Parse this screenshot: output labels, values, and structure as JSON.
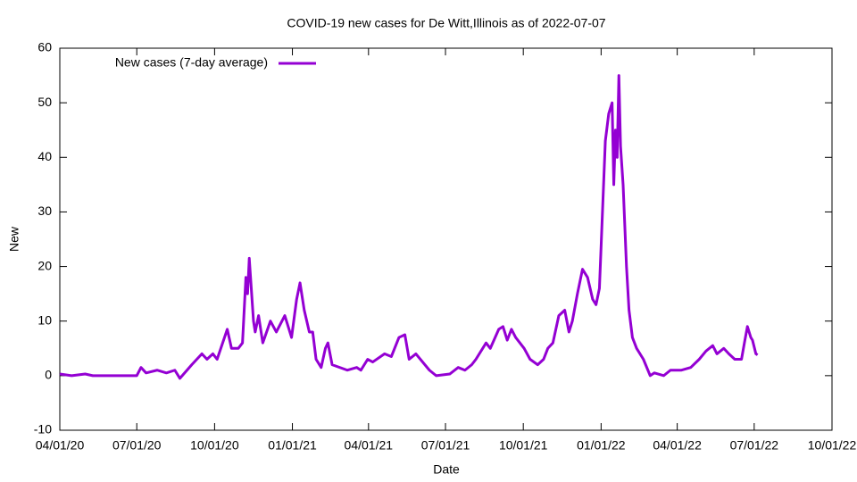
{
  "chart_data": {
    "type": "line",
    "title": "COVID-19 new cases for De Witt,Illinois as of 2022-07-07",
    "x_label": "Date",
    "y_label": "New",
    "legend": "top-left",
    "x": [
      "2020-04-01",
      "2020-04-15",
      "2020-05-01",
      "2020-05-10",
      "2020-07-01",
      "2020-07-06",
      "2020-07-12",
      "2020-07-25",
      "2020-08-05",
      "2020-08-15",
      "2020-08-21",
      "2020-09-04",
      "2020-09-16",
      "2020-09-22",
      "2020-09-29",
      "2020-10-04",
      "2020-10-16",
      "2020-10-21",
      "2020-10-29",
      "2020-11-03",
      "2020-11-07",
      "2020-11-09",
      "2020-11-11",
      "2020-11-16",
      "2020-11-18",
      "2020-11-22",
      "2020-11-27",
      "2020-12-06",
      "2020-12-13",
      "2020-12-23",
      "2020-12-31",
      "2021-01-06",
      "2021-01-10",
      "2021-01-15",
      "2021-01-21",
      "2021-01-25",
      "2021-01-29",
      "2021-02-04",
      "2021-02-09",
      "2021-02-12",
      "2021-02-17",
      "2021-03-07",
      "2021-03-18",
      "2021-03-23",
      "2021-03-31",
      "2021-04-06",
      "2021-04-20",
      "2021-04-28",
      "2021-05-07",
      "2021-05-14",
      "2021-05-19",
      "2021-05-27",
      "2021-06-12",
      "2021-06-20",
      "2021-07-06",
      "2021-07-16",
      "2021-07-24",
      "2021-08-01",
      "2021-08-06",
      "2021-08-18",
      "2021-08-23",
      "2021-09-02",
      "2021-09-07",
      "2021-09-12",
      "2021-09-17",
      "2021-09-22",
      "2021-10-02",
      "2021-10-09",
      "2021-10-18",
      "2021-10-25",
      "2021-10-30",
      "2021-11-05",
      "2021-11-12",
      "2021-11-19",
      "2021-11-24",
      "2021-11-28",
      "2021-12-04",
      "2021-12-10",
      "2021-12-16",
      "2021-12-22",
      "2021-12-26",
      "2021-12-30",
      "2022-01-06",
      "2022-01-10",
      "2022-01-14",
      "2022-01-16",
      "2022-01-18",
      "2022-01-20",
      "2022-01-22",
      "2022-01-24",
      "2022-01-27",
      "2022-01-31",
      "2022-02-03",
      "2022-02-07",
      "2022-02-12",
      "2022-02-20",
      "2022-02-28",
      "2022-03-05",
      "2022-03-16",
      "2022-03-24",
      "2022-04-06",
      "2022-04-17",
      "2022-04-27",
      "2022-05-05",
      "2022-05-13",
      "2022-05-18",
      "2022-05-26",
      "2022-06-01",
      "2022-06-08",
      "2022-06-16",
      "2022-06-20",
      "2022-06-23",
      "2022-06-27",
      "2022-06-29",
      "2022-07-03",
      "2022-07-05"
    ],
    "series": [
      {
        "name": "New cases (7-day average)",
        "color": "#9400d3",
        "values": [
          0.3,
          0,
          0.3,
          0,
          0,
          1.5,
          0.5,
          1,
          0.5,
          1,
          -0.5,
          2,
          4,
          3,
          4,
          3,
          8.5,
          5,
          5,
          6,
          18,
          15,
          21.5,
          10,
          8,
          11,
          6,
          10,
          8,
          11,
          7,
          14,
          17,
          12,
          8,
          8,
          3,
          1.5,
          5,
          6,
          2,
          1,
          1.5,
          1,
          3,
          2.5,
          4,
          3.5,
          7,
          7.5,
          3,
          4,
          1,
          0,
          0.3,
          1.5,
          1,
          2,
          3,
          6,
          5,
          8.5,
          9,
          6.5,
          8.5,
          7,
          5,
          3,
          2,
          3,
          5,
          6,
          11,
          12,
          8,
          10,
          15,
          19.5,
          18,
          14,
          13,
          16,
          43,
          48,
          50,
          35,
          45,
          40,
          55,
          42,
          35,
          20,
          12,
          7,
          5,
          3,
          0,
          0.5,
          0,
          1,
          1,
          1.5,
          3,
          4.5,
          5.5,
          4,
          5,
          4,
          3,
          3,
          6.5,
          9,
          7,
          6.5,
          4,
          3.8
        ]
      }
    ],
    "xlim": [
      "2020-04-01",
      "2022-10-01"
    ],
    "xticks": [
      {
        "value": "2020-04-01",
        "label": "04/01/20"
      },
      {
        "value": "2020-07-01",
        "label": "07/01/20"
      },
      {
        "value": "2020-10-01",
        "label": "10/01/20"
      },
      {
        "value": "2021-01-01",
        "label": "01/01/21"
      },
      {
        "value": "2021-04-01",
        "label": "04/01/21"
      },
      {
        "value": "2021-07-01",
        "label": "07/01/21"
      },
      {
        "value": "2021-10-01",
        "label": "10/01/21"
      },
      {
        "value": "2022-01-01",
        "label": "01/01/22"
      },
      {
        "value": "2022-04-01",
        "label": "04/01/22"
      },
      {
        "value": "2022-07-01",
        "label": "07/01/22"
      },
      {
        "value": "2022-10-01",
        "label": "10/01/22"
      }
    ],
    "ylim": [
      -10,
      60
    ],
    "yticks": [
      -10,
      0,
      10,
      20,
      30,
      40,
      50,
      60
    ],
    "grid": false
  }
}
